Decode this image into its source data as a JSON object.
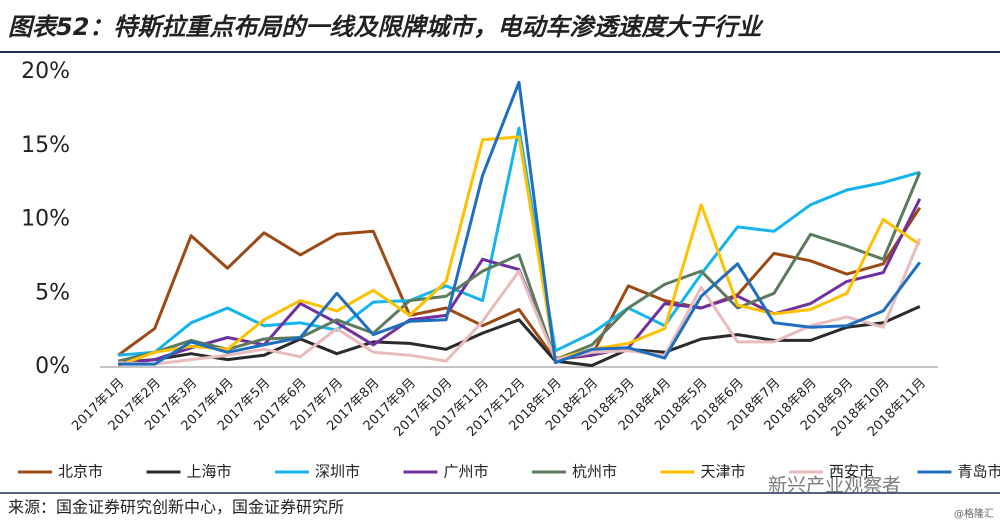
{
  "chart_data": {
    "type": "line",
    "title": "图表52：特斯拉重点布局的一线及限牌城市，电动车渗透速度大于行业",
    "source": "来源：国金证券研究创新中心，国金证券研究所",
    "watermark": "新兴产业观察者",
    "credit": "@格隆汇",
    "categories": [
      "2017年1月",
      "2017年2月",
      "2017年3月",
      "2017年4月",
      "2017年5月",
      "2017年6月",
      "2017年7月",
      "2017年8月",
      "2017年9月",
      "2017年10月",
      "2017年11月",
      "2017年12月",
      "2018年1月",
      "2018年2月",
      "2018年3月",
      "2018年4月",
      "2018年5月",
      "2018年6月",
      "2018年7月",
      "2018年8月",
      "2018年9月",
      "2018年10月",
      "2018年11月"
    ],
    "ylim": [
      0,
      20
    ],
    "yticks": [
      {
        "value": 0,
        "label": "0%"
      },
      {
        "value": 5,
        "label": "5%"
      },
      {
        "value": 10,
        "label": "10%"
      },
      {
        "value": 15,
        "label": "15%"
      },
      {
        "value": 20,
        "label": "20%"
      }
    ],
    "series": [
      {
        "name": "北京市",
        "color": "#9c4a14",
        "values": [
          0.8,
          2.6,
          8.9,
          6.7,
          9.1,
          7.6,
          9.0,
          9.2,
          3.5,
          4.0,
          2.8,
          3.9,
          0.5,
          0.8,
          5.5,
          4.5,
          4.0,
          4.9,
          7.7,
          7.2,
          6.3,
          7.0,
          10.8
        ]
      },
      {
        "name": "上海市",
        "color": "#2b2b2b",
        "values": [
          0.3,
          0.5,
          0.9,
          0.5,
          0.8,
          1.9,
          0.9,
          1.7,
          1.6,
          1.2,
          2.3,
          3.2,
          0.4,
          0.1,
          1.2,
          1.0,
          1.9,
          2.2,
          1.8,
          1.8,
          2.7,
          3.0,
          4.1
        ]
      },
      {
        "name": "深圳市",
        "color": "#16b4ec",
        "values": [
          0.8,
          1.0,
          3.0,
          4.0,
          2.8,
          3.0,
          2.5,
          4.4,
          4.5,
          5.5,
          4.5,
          16.2,
          1.1,
          2.3,
          4.0,
          2.8,
          6.3,
          9.5,
          9.2,
          11.0,
          12.0,
          12.5,
          13.2
        ]
      },
      {
        "name": "广州市",
        "color": "#7030a0",
        "values": [
          0.2,
          0.5,
          1.3,
          2.0,
          1.5,
          4.3,
          3.0,
          1.5,
          3.2,
          3.5,
          7.3,
          6.6,
          0.6,
          0.8,
          1.3,
          4.3,
          4.0,
          4.8,
          3.6,
          4.3,
          5.8,
          6.4,
          11.4
        ]
      },
      {
        "name": "杭州市",
        "color": "#5b7a5e",
        "values": [
          0.4,
          1.0,
          1.8,
          1.2,
          1.9,
          2.0,
          3.2,
          2.3,
          4.5,
          4.8,
          6.5,
          7.6,
          0.5,
          1.5,
          4.0,
          5.6,
          6.5,
          4.0,
          5.0,
          9.0,
          8.2,
          7.3,
          13.2
        ]
      },
      {
        "name": "天津市",
        "color": "#ffc000",
        "values": [
          0.1,
          1.0,
          1.4,
          1.2,
          3.2,
          4.5,
          3.8,
          5.2,
          3.5,
          5.8,
          15.4,
          15.6,
          0.5,
          1.2,
          1.6,
          2.6,
          11.0,
          4.2,
          3.6,
          3.9,
          5.0,
          10.0,
          8.3
        ]
      },
      {
        "name": "西安市",
        "color": "#e8bcbc",
        "values": [
          0.3,
          0.2,
          0.5,
          0.8,
          1.2,
          0.7,
          2.6,
          1.0,
          0.8,
          0.4,
          3.1,
          6.5,
          0.5,
          1.0,
          1.1,
          0.8,
          5.4,
          1.7,
          1.7,
          2.8,
          3.4,
          2.7,
          8.7
        ]
      },
      {
        "name": "青岛市",
        "color": "#1f6fc0",
        "values": [
          0.2,
          0.2,
          1.7,
          1.0,
          1.5,
          2.0,
          5.0,
          2.2,
          3.1,
          3.2,
          13.0,
          19.3,
          0.3,
          1.2,
          1.3,
          0.6,
          4.8,
          7.0,
          3.0,
          2.7,
          2.8,
          3.8,
          7.1
        ]
      }
    ]
  }
}
